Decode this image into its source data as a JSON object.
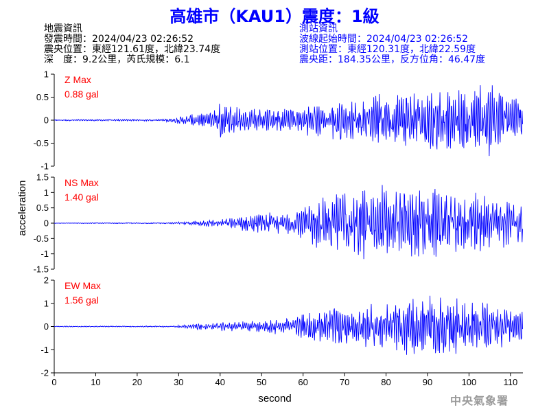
{
  "title": "高雄市（KAU1）震度：1級",
  "earthquake_info": {
    "header": "地震資訊",
    "origin_time": "發震時間：2024/04/23 02:26:52",
    "epicenter": "震央位置：東經121.61度，北緯23.74度",
    "depth_magnitude": "深　度：9.2公里，芮氏規模：6.1"
  },
  "station_info": {
    "header": "測站資訊",
    "wave_start": "波線起始時間：2024/04/23 02:26:52",
    "location": "測站位置：東經120.31度，北緯22.59度",
    "distance": "震央距：184.35公里，反方位角：46.47度"
  },
  "watermark": "中央氣象署",
  "colors": {
    "title": "#0000ff",
    "trace": "#0000ff",
    "max_label": "#ff0000",
    "station_info": "#0000ff"
  },
  "chart_data": [
    {
      "type": "line",
      "component": "Z",
      "max_label": "Z Max",
      "max_value": "0.88 gal",
      "ylim": [
        -1,
        1
      ],
      "yticks": [
        -1,
        -0.5,
        0,
        0.5,
        1
      ],
      "ytick_labels": [
        "-1",
        "-0.5",
        "0",
        "0.5",
        "1"
      ],
      "xlim": [
        0,
        113
      ],
      "envelope": [
        [
          0,
          0.015
        ],
        [
          26,
          0.025
        ],
        [
          30,
          0.08
        ],
        [
          38,
          0.2
        ],
        [
          40,
          0.42
        ],
        [
          44,
          0.3
        ],
        [
          50,
          0.3
        ],
        [
          58,
          0.3
        ],
        [
          62,
          0.35
        ],
        [
          70,
          0.5
        ],
        [
          76,
          0.55
        ],
        [
          82,
          0.6
        ],
        [
          88,
          0.7
        ],
        [
          92,
          0.7
        ],
        [
          100,
          0.7
        ],
        [
          105,
          0.88
        ],
        [
          110,
          0.6
        ],
        [
          113,
          0.45
        ]
      ]
    },
    {
      "type": "line",
      "component": "NS",
      "max_label": "NS Max",
      "max_value": "1.40 gal",
      "ylim": [
        -1.5,
        1.5
      ],
      "yticks": [
        -1.5,
        -1,
        -0.5,
        0,
        0.5,
        1,
        1.5
      ],
      "ytick_labels": [
        "-1.5",
        "-1",
        "-0.5",
        "0",
        "0.5",
        "1",
        "1.5"
      ],
      "xlim": [
        0,
        113
      ],
      "envelope": [
        [
          0,
          0.01
        ],
        [
          28,
          0.02
        ],
        [
          32,
          0.06
        ],
        [
          40,
          0.15
        ],
        [
          46,
          0.3
        ],
        [
          52,
          0.35
        ],
        [
          58,
          0.4
        ],
        [
          60,
          0.6
        ],
        [
          64,
          0.9
        ],
        [
          70,
          1.1
        ],
        [
          76,
          1.25
        ],
        [
          80,
          1.3
        ],
        [
          84,
          1.2
        ],
        [
          92,
          1.15
        ],
        [
          98,
          1.1
        ],
        [
          105,
          1.0
        ],
        [
          113,
          0.7
        ]
      ]
    },
    {
      "type": "line",
      "component": "EW",
      "max_label": "EW Max",
      "max_value": "1.56 gal",
      "ylim": [
        -2,
        2
      ],
      "yticks": [
        -2,
        -1,
        0,
        1,
        2
      ],
      "ytick_labels": [
        "-2",
        "-1",
        "0",
        "1",
        "2"
      ],
      "xlim": [
        0,
        113
      ],
      "envelope": [
        [
          0,
          0.02
        ],
        [
          28,
          0.03
        ],
        [
          32,
          0.1
        ],
        [
          40,
          0.2
        ],
        [
          48,
          0.25
        ],
        [
          56,
          0.4
        ],
        [
          60,
          0.6
        ],
        [
          66,
          0.8
        ],
        [
          72,
          0.95
        ],
        [
          78,
          1.0
        ],
        [
          82,
          1.2
        ],
        [
          86,
          1.3
        ],
        [
          92,
          1.5
        ],
        [
          98,
          1.2
        ],
        [
          104,
          1.1
        ],
        [
          110,
          0.9
        ],
        [
          113,
          0.7
        ]
      ]
    }
  ],
  "xaxis": {
    "label": "second",
    "ticks": [
      0,
      10,
      20,
      30,
      40,
      50,
      60,
      70,
      80,
      90,
      100,
      110
    ],
    "tick_labels": [
      "0",
      "10",
      "20",
      "30",
      "40",
      "50",
      "60",
      "70",
      "80",
      "90",
      "100",
      "110"
    ]
  },
  "yaxis": {
    "label": "acceleration"
  }
}
